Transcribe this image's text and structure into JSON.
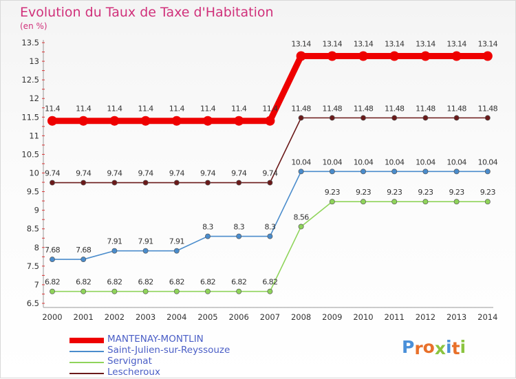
{
  "title": "Evolution du Taux de Taxe d'Habitation",
  "subtitle": "(en %)",
  "logo": {
    "text": "Proxiti",
    "letter_colors": [
      "#4a90d9",
      "#e8702a",
      "#e8702a",
      "#8bc43f",
      "#4a90d9",
      "#e8702a",
      "#8bc43f"
    ]
  },
  "chart_data": {
    "type": "line",
    "title": "Evolution du Taux de Taxe d'Habitation",
    "ylabel": "(en %)",
    "xlabel": "",
    "categories": [
      "2000",
      "2001",
      "2002",
      "2003",
      "2004",
      "2005",
      "2006",
      "2007",
      "2008",
      "2009",
      "2010",
      "2011",
      "2012",
      "2013",
      "2014"
    ],
    "ylim": [
      6.5,
      13.5
    ],
    "yticks": [
      "6.5",
      "7",
      "7.5",
      "8",
      "8.5",
      "9",
      "9.5",
      "10",
      "10.5",
      "11",
      "11.5",
      "12",
      "12.5",
      "13",
      "13.5"
    ],
    "grid": false,
    "legend_position": "bottom-left",
    "series": [
      {
        "name": "Lescheroux",
        "color": "#6b1a1a",
        "thick": false,
        "values": [
          9.74,
          9.74,
          9.74,
          9.74,
          9.74,
          9.74,
          9.74,
          9.74,
          11.48,
          11.48,
          11.48,
          11.48,
          11.48,
          11.48,
          11.48
        ],
        "labels": [
          "9.74",
          "9.74",
          "9.74",
          "9.74",
          "9.74",
          "9.74",
          "9.74",
          "9.74",
          "11.48",
          "11.48",
          "11.48",
          "11.48",
          "11.48",
          "11.48",
          "11.48"
        ]
      },
      {
        "name": "Servignat",
        "color": "#8fd45a",
        "thick": false,
        "values": [
          6.82,
          6.82,
          6.82,
          6.82,
          6.82,
          6.82,
          6.82,
          6.82,
          8.56,
          9.23,
          9.23,
          9.23,
          9.23,
          9.23,
          9.23
        ],
        "labels": [
          "6.82",
          "6.82",
          "6.82",
          "6.82",
          "6.82",
          "6.82",
          "6.82",
          "6.82",
          "8.56",
          "9.23",
          "9.23",
          "9.23",
          "9.23",
          "9.23",
          "9.23"
        ]
      },
      {
        "name": "Saint-Julien-sur-Reyssouze",
        "color": "#4a8ccc",
        "thick": false,
        "values": [
          7.68,
          7.68,
          7.91,
          7.91,
          7.91,
          8.3,
          8.3,
          8.3,
          10.04,
          10.04,
          10.04,
          10.04,
          10.04,
          10.04,
          10.04
        ],
        "labels": [
          "7.68",
          "7.68",
          "7.91",
          "7.91",
          "7.91",
          "8.3",
          "8.3",
          "8.3",
          "10.04",
          "10.04",
          "10.04",
          "10.04",
          "10.04",
          "10.04",
          "10.04"
        ]
      },
      {
        "name": "MANTENAY-MONTLIN",
        "color": "#ee0000",
        "thick": true,
        "values": [
          11.4,
          11.4,
          11.4,
          11.4,
          11.4,
          11.4,
          11.4,
          11.4,
          13.14,
          13.14,
          13.14,
          13.14,
          13.14,
          13.14,
          13.14
        ],
        "labels": [
          "11.4",
          "11.4",
          "11.4",
          "11.4",
          "11.4",
          "11.4",
          "11.4",
          "11.4",
          "13.14",
          "13.14",
          "13.14",
          "13.14",
          "13.14",
          "13.14",
          "13.14"
        ]
      }
    ],
    "legend_order": [
      "MANTENAY-MONTLIN",
      "Saint-Julien-sur-Reyssouze",
      "Servignat",
      "Lescheroux"
    ]
  }
}
